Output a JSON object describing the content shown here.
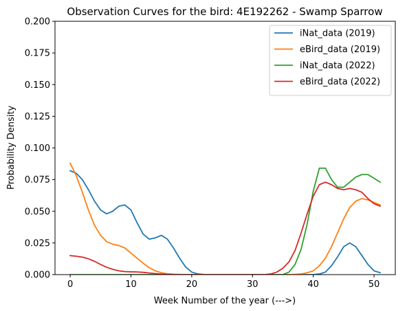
{
  "chart_data": {
    "type": "line",
    "title": "Observation Curves for the bird: 4E192262 - Swamp Sparrow",
    "xlabel": "Week Number of the year (--->)",
    "ylabel": "Probability Density",
    "xlim": [
      -2.5,
      53.5
    ],
    "ylim": [
      0,
      0.2
    ],
    "xticks": [
      0,
      10,
      20,
      30,
      40,
      50
    ],
    "xtick_labels": [
      "0",
      "10",
      "20",
      "30",
      "40",
      "50"
    ],
    "yticks": [
      0,
      0.025,
      0.05,
      0.075,
      0.1,
      0.125,
      0.15,
      0.175,
      0.2
    ],
    "ytick_labels": [
      "0.000",
      "0.025",
      "0.050",
      "0.075",
      "0.100",
      "0.125",
      "0.150",
      "0.175",
      "0.200"
    ],
    "grid": false,
    "legend_position": "top-right",
    "x": [
      0,
      1,
      2,
      3,
      4,
      5,
      6,
      7,
      8,
      9,
      10,
      11,
      12,
      13,
      14,
      15,
      16,
      17,
      18,
      19,
      20,
      21,
      22,
      23,
      24,
      25,
      26,
      27,
      28,
      29,
      30,
      31,
      32,
      33,
      34,
      35,
      36,
      37,
      38,
      39,
      40,
      41,
      42,
      43,
      44,
      45,
      46,
      47,
      48,
      49,
      50,
      51
    ],
    "series": [
      {
        "name": "iNat_data (2019)",
        "color": "#1f77b4",
        "values": [
          0.082,
          0.08,
          0.075,
          0.067,
          0.058,
          0.051,
          0.048,
          0.05,
          0.054,
          0.055,
          0.051,
          0.041,
          0.032,
          0.028,
          0.029,
          0.031,
          0.028,
          0.021,
          0.013,
          0.006,
          0.002,
          0.0005,
          0.0001,
          0,
          0,
          0,
          0,
          0,
          0,
          0,
          0,
          0,
          0,
          0,
          0,
          0,
          0,
          0,
          0,
          0,
          0,
          0.0005,
          0.002,
          0.007,
          0.014,
          0.022,
          0.025,
          0.022,
          0.015,
          0.008,
          0.003,
          0.0015
        ]
      },
      {
        "name": "eBird_data (2019)",
        "color": "#ff7f0e",
        "values": [
          0.088,
          0.078,
          0.065,
          0.051,
          0.039,
          0.031,
          0.026,
          0.024,
          0.023,
          0.021,
          0.017,
          0.013,
          0.009,
          0.0055,
          0.003,
          0.0015,
          0.0007,
          0.0003,
          0.0001,
          0,
          0,
          0,
          0,
          0,
          0,
          0,
          0,
          0,
          0,
          0,
          0,
          0,
          0,
          0,
          0,
          0,
          0,
          0.0002,
          0.0005,
          0.0015,
          0.003,
          0.007,
          0.013,
          0.022,
          0.033,
          0.044,
          0.053,
          0.058,
          0.06,
          0.059,
          0.057,
          0.055
        ]
      },
      {
        "name": "iNat_data (2022)",
        "color": "#2ca02c",
        "values": [
          0,
          0,
          0,
          0,
          0,
          0,
          0,
          0,
          0,
          0,
          0,
          0,
          0,
          0,
          0,
          0,
          0,
          0,
          0,
          0,
          0,
          0,
          0,
          0,
          0,
          0,
          0,
          0,
          0,
          0,
          0,
          0,
          0,
          0,
          0,
          0,
          0.002,
          0.008,
          0.02,
          0.04,
          0.066,
          0.084,
          0.084,
          0.075,
          0.069,
          0.069,
          0.073,
          0.077,
          0.079,
          0.079,
          0.076,
          0.073
        ]
      },
      {
        "name": "eBird_data (2022)",
        "color": "#d62728",
        "values": [
          0.015,
          0.0145,
          0.0138,
          0.0125,
          0.0105,
          0.008,
          0.0058,
          0.0042,
          0.003,
          0.0024,
          0.0022,
          0.0021,
          0.0018,
          0.0013,
          0.0008,
          0.0004,
          0.0002,
          0,
          0,
          0,
          0,
          0,
          0,
          0,
          0,
          0,
          0,
          0,
          0,
          0,
          0,
          0,
          0,
          0.0005,
          0.002,
          0.005,
          0.01,
          0.019,
          0.033,
          0.048,
          0.062,
          0.071,
          0.073,
          0.071,
          0.068,
          0.067,
          0.068,
          0.067,
          0.065,
          0.06,
          0.056,
          0.054
        ]
      }
    ]
  }
}
